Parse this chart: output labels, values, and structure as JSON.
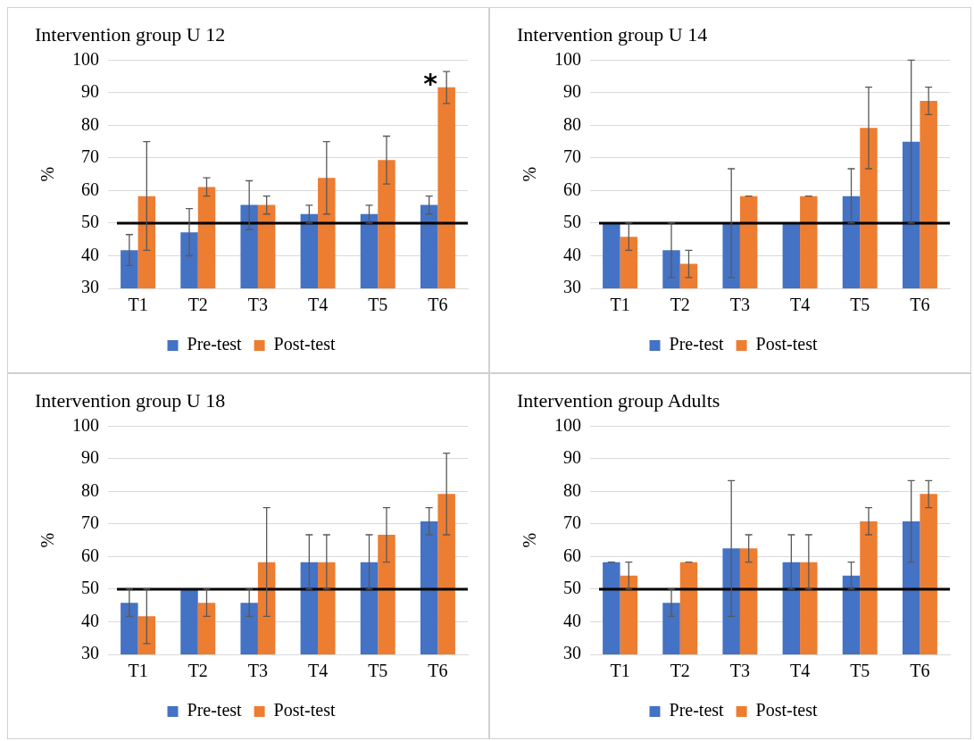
{
  "chart_data": [
    {
      "type": "bar",
      "title": "Intervention group U 12",
      "ylabel": "%",
      "categories": [
        "T1",
        "T2",
        "T3",
        "T4",
        "T5",
        "T6"
      ],
      "ylim": [
        30,
        100
      ],
      "yticks": [
        30,
        40,
        50,
        60,
        70,
        80,
        90,
        100
      ],
      "grid": "y",
      "legend": "bottom",
      "annotations": [
        {
          "text": "*",
          "x": "T6",
          "y": 91.7
        }
      ],
      "ref_lines": [
        {
          "axis": "y",
          "value": 50,
          "color": "#000000"
        }
      ],
      "series": [
        {
          "name": "Pre-test",
          "color": "#4472c4",
          "values": [
            41.7,
            47.2,
            55.6,
            52.8,
            52.8,
            55.6
          ],
          "errors": [
            [
              37,
              46.5
            ],
            [
              40,
              54.5
            ],
            [
              48,
              63
            ],
            [
              50,
              55.5
            ],
            [
              50,
              55.5
            ],
            [
              52.8,
              58.3
            ]
          ]
        },
        {
          "name": "Post-test",
          "color": "#ed7d31",
          "values": [
            58.3,
            61.1,
            55.6,
            63.9,
            69.4,
            91.7
          ],
          "errors": [
            [
              41.7,
              75
            ],
            [
              58.3,
              63.9
            ],
            [
              52.8,
              58.3
            ],
            [
              52.8,
              75
            ],
            [
              62,
              76.7
            ],
            [
              86.7,
              96.5
            ]
          ]
        }
      ]
    },
    {
      "type": "bar",
      "title": "Intervention group U 14",
      "ylabel": "%",
      "categories": [
        "T1",
        "T2",
        "T3",
        "T4",
        "T5",
        "T6"
      ],
      "ylim": [
        30,
        100
      ],
      "yticks": [
        30,
        40,
        50,
        60,
        70,
        80,
        90,
        100
      ],
      "grid": "y",
      "legend": "bottom",
      "ref_lines": [
        {
          "axis": "y",
          "value": 50,
          "color": "#000000"
        }
      ],
      "series": [
        {
          "name": "Pre-test",
          "color": "#4472c4",
          "values": [
            50,
            41.7,
            50,
            50,
            58.3,
            75
          ],
          "errors": [
            null,
            [
              33.3,
              50
            ],
            [
              33.3,
              66.7
            ],
            null,
            [
              50,
              66.7
            ],
            [
              50,
              100
            ]
          ]
        },
        {
          "name": "Post-test",
          "color": "#ed7d31",
          "values": [
            45.8,
            37.5,
            58.3,
            58.3,
            79.2,
            87.5
          ],
          "errors": [
            [
              41.7,
              50
            ],
            [
              33.3,
              41.7
            ],
            [
              58.3,
              58.3
            ],
            [
              58.3,
              58.3
            ],
            [
              66.7,
              91.7
            ],
            [
              83.3,
              91.7
            ]
          ]
        }
      ]
    },
    {
      "type": "bar",
      "title": "Intervention group U 18",
      "ylabel": "%",
      "categories": [
        "T1",
        "T2",
        "T3",
        "T4",
        "T5",
        "T6"
      ],
      "ylim": [
        30,
        100
      ],
      "yticks": [
        30,
        40,
        50,
        60,
        70,
        80,
        90,
        100
      ],
      "grid": "y",
      "legend": "bottom",
      "ref_lines": [
        {
          "axis": "y",
          "value": 50,
          "color": "#000000"
        }
      ],
      "series": [
        {
          "name": "Pre-test",
          "color": "#4472c4",
          "values": [
            45.8,
            50,
            45.8,
            58.3,
            58.3,
            70.8
          ],
          "errors": [
            [
              41.7,
              50
            ],
            null,
            [
              41.7,
              50
            ],
            [
              50,
              66.7
            ],
            [
              50,
              66.7
            ],
            [
              66.7,
              75
            ]
          ]
        },
        {
          "name": "Post-test",
          "color": "#ed7d31",
          "values": [
            41.7,
            45.8,
            58.3,
            58.3,
            66.7,
            79.2
          ],
          "errors": [
            [
              33.3,
              50
            ],
            [
              41.7,
              50
            ],
            [
              41.7,
              75
            ],
            [
              50,
              66.7
            ],
            [
              58.3,
              75
            ],
            [
              66.7,
              91.7
            ]
          ]
        }
      ]
    },
    {
      "type": "bar",
      "title": "Intervention group Adults",
      "ylabel": "%",
      "categories": [
        "T1",
        "T2",
        "T3",
        "T4",
        "T5",
        "T6"
      ],
      "ylim": [
        30,
        100
      ],
      "yticks": [
        30,
        40,
        50,
        60,
        70,
        80,
        90,
        100
      ],
      "grid": "y",
      "legend": "bottom",
      "ref_lines": [
        {
          "axis": "y",
          "value": 50,
          "color": "#000000"
        }
      ],
      "series": [
        {
          "name": "Pre-test",
          "color": "#4472c4",
          "values": [
            58.3,
            45.8,
            62.5,
            58.3,
            54.2,
            70.8
          ],
          "errors": [
            [
              58.3,
              58.3
            ],
            [
              41.7,
              50
            ],
            [
              41.7,
              83.3
            ],
            [
              50,
              66.7
            ],
            [
              50,
              58.3
            ],
            [
              58.3,
              83.3
            ]
          ]
        },
        {
          "name": "Post-test",
          "color": "#ed7d31",
          "values": [
            54.2,
            58.3,
            62.5,
            58.3,
            70.8,
            79.2
          ],
          "errors": [
            [
              50,
              58.3
            ],
            [
              58.3,
              58.3
            ],
            [
              58.3,
              66.7
            ],
            [
              50,
              66.7
            ],
            [
              66.7,
              75
            ],
            [
              75,
              83.3
            ]
          ]
        }
      ]
    }
  ]
}
